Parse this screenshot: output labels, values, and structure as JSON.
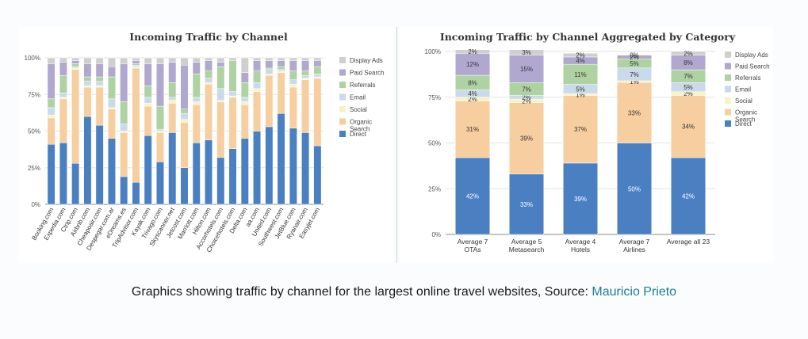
{
  "colors": {
    "Display Ads": "#cfcfcf",
    "Paid Search": "#b1a8d0",
    "Referrals": "#afd2a2",
    "Email": "#c9daea",
    "Social": "#faf2c6",
    "Organic Search": "#f6ce9f",
    "Direct": "#4a80c2"
  },
  "caption": {
    "text": "Graphics showing traffic by channel for the largest online travel websites, Source: ",
    "link": "Mauricio Prieto"
  },
  "chart_data": [
    {
      "type": "bar",
      "stacked": true,
      "title": "Incoming Traffic by Channel",
      "categories": [
        "Booking.com",
        "Expedia.com",
        "Ctrip.com",
        "Airbnb.com",
        "Cheapoair.com",
        "Despegar.com.ar",
        "eDreams.es",
        "TripAdvisor.com",
        "Kayak.com",
        "Trivago.com",
        "Skyscanner.net",
        "Jetcost.com",
        "Marriott.com",
        "Hilton.com",
        "Accorhotels.com",
        "Choicehotels.com",
        "Delta.com",
        "aa.com",
        "United.com",
        "Southwest.com",
        "JetBlue.com",
        "Ryanair.com",
        "Easyjet.com"
      ],
      "yticks": [
        "0%",
        "25%",
        "50%",
        "75%",
        "100%"
      ],
      "ylim": [
        0,
        100
      ],
      "legend": [
        "Display Ads",
        "Paid Search",
        "Referrals",
        "Email",
        "Social",
        "Organic Search",
        "Direct"
      ],
      "legend_position": "right",
      "series": [
        {
          "name": "Direct",
          "values": [
            41,
            42,
            28,
            60,
            54,
            45,
            19,
            15,
            47,
            29,
            49,
            25,
            42,
            44,
            32,
            38,
            45,
            50,
            53,
            62,
            52,
            49,
            40
          ]
        },
        {
          "name": "Organic Search",
          "values": [
            18,
            30,
            64,
            20,
            26,
            20,
            30,
            78,
            20,
            20,
            20,
            31,
            26,
            38,
            38,
            35,
            23,
            27,
            35,
            28,
            28,
            36,
            46
          ]
        },
        {
          "name": "Social",
          "values": [
            2,
            1,
            1,
            1,
            1,
            1,
            1,
            1,
            2,
            1,
            2,
            2,
            2,
            1,
            1,
            1,
            2,
            2,
            1,
            1,
            2,
            1,
            1
          ]
        },
        {
          "name": "Email",
          "values": [
            5,
            3,
            1,
            3,
            3,
            6,
            5,
            1,
            4,
            1,
            2,
            4,
            3,
            3,
            8,
            3,
            3,
            4,
            3,
            1,
            3,
            2,
            2
          ]
        },
        {
          "name": "Referrals",
          "values": [
            6,
            12,
            2,
            3,
            3,
            15,
            15,
            1,
            8,
            16,
            10,
            3,
            16,
            5,
            15,
            21,
            10,
            8,
            1,
            2,
            6,
            3,
            5
          ]
        },
        {
          "name": "Paid Search",
          "values": [
            24,
            9,
            2,
            9,
            9,
            7,
            26,
            2,
            15,
            29,
            14,
            30,
            8,
            7,
            3,
            0,
            7,
            7,
            5,
            4,
            7,
            7,
            4
          ]
        },
        {
          "name": "Display Ads",
          "values": [
            4,
            3,
            2,
            4,
            4,
            6,
            4,
            2,
            4,
            4,
            3,
            5,
            3,
            2,
            3,
            2,
            10,
            2,
            2,
            2,
            2,
            2,
            2
          ]
        }
      ]
    },
    {
      "type": "bar",
      "stacked": true,
      "title": "Incoming Traffic by Channel Aggregated by Category",
      "categories": [
        [
          "Average 7",
          "OTAs"
        ],
        [
          "Average 5",
          "Metasearch"
        ],
        [
          "Average 4",
          "Hotels"
        ],
        [
          "Average 7",
          "Airlines"
        ],
        [
          "Average all 23"
        ]
      ],
      "yticks": [
        "0%",
        "25%",
        "50%",
        "75%",
        "100%"
      ],
      "ylim": [
        0,
        100
      ],
      "legend": [
        "Display Ads",
        "Paid Search",
        "Referrals",
        "Email",
        "Social",
        "Organic Search",
        "Direct"
      ],
      "legend_position": "right",
      "series": [
        {
          "name": "Direct",
          "values": [
            42,
            33,
            39,
            50,
            42
          ],
          "labels": [
            "42%",
            "33%",
            "39%",
            "50%",
            "42%"
          ]
        },
        {
          "name": "Organic Search",
          "values": [
            31,
            39,
            37,
            33,
            34
          ],
          "labels": [
            "31%",
            "39%",
            "37%",
            "33%",
            "34%"
          ]
        },
        {
          "name": "Social",
          "values": [
            2,
            2,
            1,
            1,
            2
          ],
          "labels": [
            "2%",
            "2%",
            "1%",
            "1%",
            "2%"
          ]
        },
        {
          "name": "Email",
          "values": [
            4,
            2,
            5,
            7,
            5
          ],
          "labels": [
            "4%",
            "2%",
            "5%",
            "7%",
            "5%"
          ]
        },
        {
          "name": "Referrals",
          "values": [
            8,
            7,
            11,
            5,
            7
          ],
          "labels": [
            "8%",
            "7%",
            "11%",
            "5%",
            "7%"
          ]
        },
        {
          "name": "Paid Search",
          "values": [
            12,
            15,
            4,
            2,
            8
          ],
          "labels": [
            "12%",
            "15%",
            "4%",
            "2%",
            "8%"
          ]
        },
        {
          "name": "Display Ads",
          "values": [
            2,
            3,
            2,
            0,
            2
          ],
          "labels": [
            "2%",
            "3%",
            "2%",
            "0%",
            "2%"
          ]
        }
      ]
    }
  ]
}
